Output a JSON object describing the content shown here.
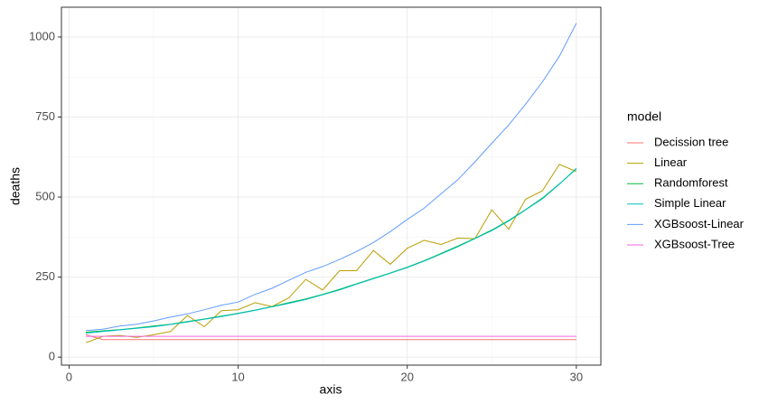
{
  "chart_data": {
    "type": "line",
    "x_label": "axis",
    "y_label": "deaths",
    "legend_title": "model",
    "x": [
      1,
      2,
      3,
      4,
      5,
      6,
      7,
      8,
      9,
      10,
      11,
      12,
      13,
      14,
      15,
      16,
      17,
      18,
      19,
      20,
      21,
      22,
      23,
      24,
      25,
      26,
      27,
      28,
      29,
      30
    ],
    "xlim": [
      -0.45,
      31.45
    ],
    "xticks": [
      0,
      10,
      20,
      30
    ],
    "ylim": [
      -25,
      1093
    ],
    "yticks": [
      0,
      250,
      500,
      750,
      1000
    ],
    "grid": true,
    "legend": "right",
    "series": [
      {
        "name": "Decission tree",
        "color": "#F8766D",
        "values": [
          70,
          55,
          55,
          55,
          55,
          55,
          55,
          55,
          55,
          55,
          55,
          55,
          55,
          55,
          55,
          55,
          55,
          55,
          55,
          55,
          55,
          55,
          55,
          55,
          55,
          55,
          55,
          55,
          55,
          55
        ]
      },
      {
        "name": "Linear",
        "color": "#B79F00",
        "values": [
          45,
          65,
          68,
          62,
          70,
          80,
          130,
          95,
          145,
          148,
          170,
          158,
          185,
          243,
          210,
          270,
          270,
          333,
          290,
          340,
          365,
          352,
          372,
          370,
          460,
          400,
          493,
          520,
          602,
          580
        ]
      },
      {
        "name": "Randomforest",
        "color": "#00BA38",
        "values": [
          78,
          82,
          86,
          91,
          97,
          103,
          111,
          119,
          128,
          137,
          147,
          158,
          170,
          182,
          196,
          212,
          229,
          246,
          263,
          281,
          301,
          324,
          347,
          371,
          397,
          427,
          461,
          497,
          541,
          588
        ]
      },
      {
        "name": "Simple Linear",
        "color": "#00BFC4",
        "values": [
          75,
          80,
          85,
          90,
          95,
          102,
          110,
          118,
          127,
          136,
          146,
          157,
          168,
          180,
          195,
          210,
          228,
          245,
          262,
          280,
          300,
          322,
          345,
          370,
          395,
          425,
          460,
          495,
          540,
          590
        ]
      },
      {
        "name": "XGBsoost-Linear",
        "color": "#619CFF",
        "values": [
          83,
          87,
          97,
          103,
          113,
          125,
          135,
          148,
          162,
          172,
          196,
          215,
          240,
          265,
          283,
          305,
          330,
          358,
          392,
          430,
          465,
          510,
          555,
          610,
          668,
          725,
          790,
          860,
          940,
          1043
        ]
      },
      {
        "name": "XGBsoost-Tree",
        "color": "#F564E3",
        "values": [
          65,
          65,
          65,
          65,
          65,
          65,
          65,
          65,
          65,
          65,
          65,
          65,
          65,
          65,
          65,
          65,
          65,
          65,
          65,
          65,
          65,
          65,
          65,
          65,
          65,
          65,
          65,
          65,
          65,
          65
        ]
      }
    ]
  }
}
